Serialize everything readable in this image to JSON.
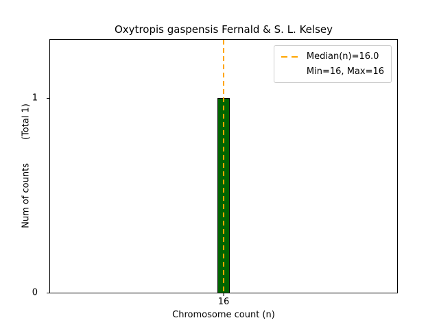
{
  "chart_data": {
    "type": "bar",
    "title": "Oxytropis gaspensis Fernald & S. L. Kelsey",
    "xlabel": "Chromosome count (n)",
    "ylabel": "Num of counts",
    "ylabel_annotation": "(Total 1)",
    "categories": [
      "16"
    ],
    "values": [
      1
    ],
    "ylim": [
      0,
      1.3
    ],
    "yticks": [
      "0",
      "1"
    ],
    "ytick_values": [
      0,
      1
    ],
    "xticks": [
      "16"
    ],
    "bar_color": "#006400",
    "bar_edge_color": "#000000",
    "grid": "off",
    "median_line": {
      "value": 16.0,
      "color": "#FFA500",
      "style": "dashed"
    },
    "legend": {
      "position": "top-right",
      "entries": [
        "Median(n)=16.0",
        "Min=16, Max=16"
      ]
    }
  }
}
